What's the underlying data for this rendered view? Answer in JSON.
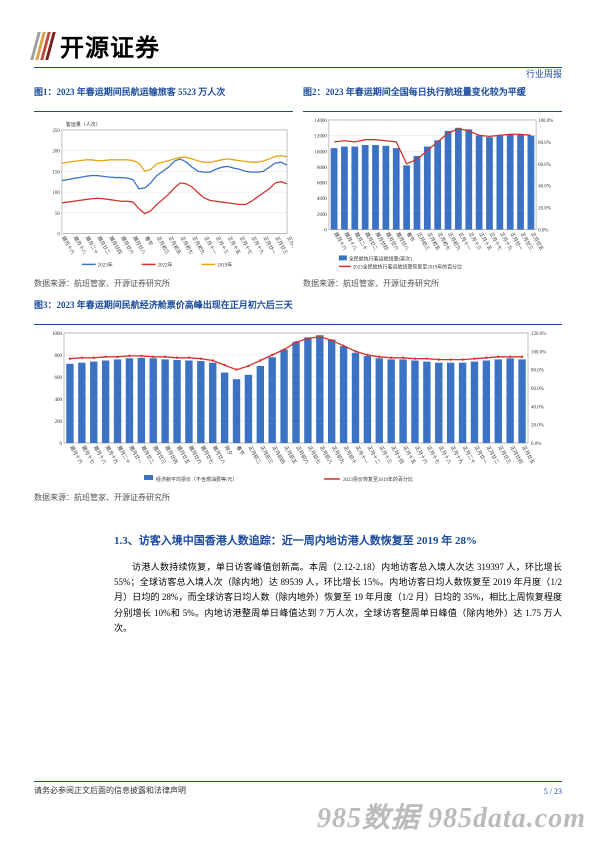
{
  "header": {
    "brand": "开源证券",
    "category": "行业周报"
  },
  "fig1": {
    "title": "图1：2023 年春运期间民航运输旅客 5523 万人次",
    "ylabel": "客运量（人次）",
    "x_labels": [
      "腊月十六",
      "腊月十七",
      "腊月十八",
      "腊月十九",
      "腊月二十",
      "腊月廿一",
      "腊月廿二",
      "腊月廿三",
      "腊月廿四",
      "腊月廿五",
      "腊月廿六",
      "腊月廿七",
      "腊月廿八",
      "除夕",
      "春节",
      "正月初二",
      "正月初三",
      "正月初四",
      "正月初五",
      "正月初六",
      "正月初七",
      "正月初八",
      "正月初九",
      "正月初十",
      "正月十一",
      "正月十二",
      "正月十三",
      "正月十四",
      "正月十五",
      "正月十六",
      "正月十七",
      "正月十八",
      "正月十九",
      "正月二十",
      "正月廿一",
      "正月廿二",
      "正月廿三",
      "正月廿四",
      "正月廿五"
    ],
    "y_ticks": [
      0,
      50,
      100,
      150,
      200,
      250
    ],
    "series": [
      {
        "name": "2023年",
        "color": "#3b72c4",
        "vals": [
          128,
          130,
          133,
          135,
          138,
          140,
          140,
          138,
          136,
          135,
          135,
          134,
          130,
          108,
          110,
          122,
          140,
          150,
          160,
          175,
          180,
          172,
          160,
          150,
          148,
          148,
          155,
          160,
          162,
          158,
          155,
          150,
          148,
          148,
          150,
          160,
          170,
          172,
          165
        ]
      },
      {
        "name": "2022年",
        "color": "#d0342c",
        "vals": [
          74,
          76,
          78,
          80,
          82,
          84,
          85,
          84,
          82,
          80,
          78,
          78,
          76,
          60,
          48,
          55,
          70,
          82,
          95,
          110,
          122,
          120,
          112,
          98,
          86,
          80,
          78,
          76,
          74,
          72,
          70,
          70,
          78,
          88,
          98,
          108,
          122,
          125,
          120
        ]
      },
      {
        "name": "2019年",
        "color": "#e3a517",
        "vals": [
          170,
          172,
          174,
          176,
          178,
          178,
          176,
          176,
          178,
          178,
          178,
          178,
          176,
          170,
          150,
          155,
          168,
          172,
          176,
          180,
          184,
          184,
          180,
          175,
          172,
          172,
          175,
          178,
          180,
          178,
          176,
          174,
          172,
          172,
          175,
          180,
          186,
          188,
          185
        ]
      }
    ],
    "source": "数据来源：航班管家、开源证券研究所"
  },
  "fig2": {
    "title": "图2：2023 年春运期间全国每日执行航班量变化较为平缓",
    "y_ticks_left": [
      0,
      2000,
      4000,
      6000,
      8000,
      10000,
      12000,
      14000
    ],
    "y_ticks_right": [
      "0.0%",
      "20.0%",
      "40.0%",
      "60.0%",
      "80.0%",
      "100.0%"
    ],
    "x_labels": [
      "腊月十六",
      "腊月十八",
      "腊月二十",
      "腊月廿二",
      "腊月廿四",
      "腊月廿六",
      "腊月廿八",
      "春节",
      "正月初三",
      "正月初五",
      "正月初七",
      "正月初九",
      "正月十一",
      "正月十三",
      "正月十五",
      "正月十七",
      "正月十九",
      "正月廿一",
      "正月廿三",
      "正月廿五"
    ],
    "bars": {
      "name": "全民航执行客运航班量(架次)",
      "color": "#3b72c4",
      "vals": [
        10400,
        10600,
        10600,
        10800,
        10800,
        10700,
        10400,
        8200,
        9400,
        10600,
        11400,
        12600,
        13000,
        12800,
        12000,
        11800,
        12000,
        12200,
        12200,
        12000
      ]
    },
    "line": {
      "name": "2023全民航执行客运航班量恢复至2019年的百分比",
      "color": "#d0342c",
      "vals": [
        80,
        81,
        80,
        82,
        82,
        81,
        80,
        60,
        64,
        72,
        80,
        88,
        92,
        90,
        86,
        85,
        86,
        87,
        87,
        86
      ]
    },
    "source": "数据来源：航班管家、开源证券研究所"
  },
  "fig3": {
    "title": "图3：2023 年春运期间民航经济舱票价高峰出现在正月初六后三天",
    "y_ticks_left": [
      0,
      200,
      400,
      600,
      800,
      1000
    ],
    "y_ticks_right": [
      "0.0%",
      "20.0%",
      "40.0%",
      "60.0%",
      "80.0%",
      "100.0%",
      "120.0%"
    ],
    "x_labels": [
      "腊月十六",
      "腊月十七",
      "腊月十八",
      "腊月十九",
      "腊月二十",
      "腊月廿一",
      "腊月廿二",
      "腊月廿三",
      "腊月廿四",
      "腊月廿五",
      "腊月廿六",
      "腊月廿七",
      "腊月廿八",
      "除夕",
      "春节",
      "正月初二",
      "正月初三",
      "正月初四",
      "正月初五",
      "正月初六",
      "正月初七",
      "正月初八",
      "正月初九",
      "正月初十",
      "正月十一",
      "正月十二",
      "正月十三",
      "正月十四",
      "正月十五",
      "正月十六",
      "正月十七",
      "正月十八",
      "正月十九",
      "正月二十",
      "正月廿一",
      "正月廿二",
      "正月廿三",
      "正月廿四",
      "正月廿五"
    ],
    "bars": {
      "name": "经济舱平均票价（不含燃油费等/元）",
      "color": "#3b72c4",
      "vals": [
        720,
        730,
        740,
        750,
        760,
        770,
        775,
        770,
        760,
        755,
        750,
        745,
        730,
        640,
        580,
        620,
        700,
        780,
        850,
        920,
        960,
        980,
        940,
        880,
        820,
        790,
        770,
        760,
        760,
        750,
        740,
        730,
        730,
        730,
        740,
        750,
        760,
        770,
        760
      ]
    },
    "line": {
      "name": "2023票价恢复至2019年的百分比",
      "color": "#d0342c",
      "vals": [
        92,
        93,
        93,
        94,
        94,
        95,
        95,
        94,
        94,
        93,
        93,
        92,
        90,
        85,
        80,
        84,
        90,
        96,
        102,
        110,
        114,
        116,
        112,
        106,
        100,
        96,
        94,
        93,
        93,
        92,
        92,
        91,
        91,
        91,
        92,
        93,
        94,
        94,
        94
      ]
    },
    "source": "数据来源：航班管家、开源证券研究所"
  },
  "section": {
    "heading": "1.3、访客入境中国香港人数追踪：近一周内地访港人数恢复至 2019 年 28%",
    "body": "访港人数持续恢复，单日访客峰值创新高。本周（2.12-2.18）内地访客总入境人次达 319397 人，环比增长 55%；全球访客总入境人次（除内地）达 89539 人，环比增长 15%。内地访客日均人数恢复至 2019 年月度（1/2 月）日均的 28%，而全球访客日均人数（除内地外）恢复至 19 年月度（1/2 月）日均的 35%，相比上周恢复程度分别增长 10%和 5%。内地访港整周单日峰值达到 7 万人次，全球访客整周单日峰值（除内地外）达 1.75 万人次。"
  },
  "footer": {
    "disclaimer": "请务必参阅正文后面的信息披露和法律声明",
    "page": "5 / 23",
    "watermark": "985数据 985data.com"
  }
}
